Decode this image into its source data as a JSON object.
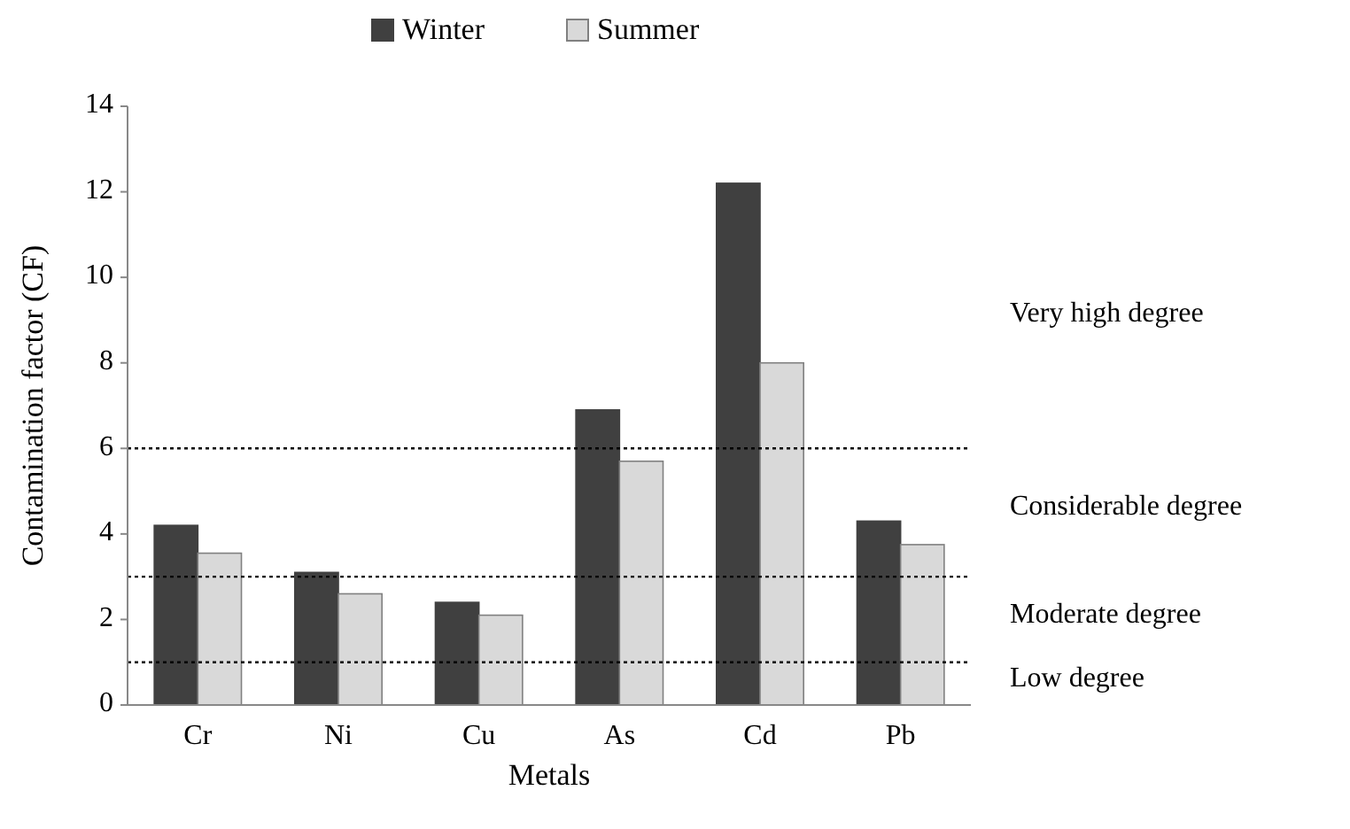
{
  "chart_data": {
    "type": "bar",
    "xlabel": "Metals",
    "ylabel": "Contamination factor (CF)",
    "categories": [
      "Cr",
      "Ni",
      "Cu",
      "As",
      "Cd",
      "Pb"
    ],
    "series": [
      {
        "name": "Winter",
        "color": "#404040",
        "values": [
          4.2,
          3.1,
          2.4,
          6.9,
          12.2,
          4.3
        ]
      },
      {
        "name": "Summer",
        "color": "#d9d9d9",
        "values": [
          3.55,
          2.6,
          2.1,
          5.7,
          8.0,
          3.75
        ]
      }
    ],
    "ylim": [
      0,
      14
    ],
    "yticks": [
      0,
      2,
      4,
      6,
      8,
      10,
      12,
      14
    ],
    "grid": false,
    "legend": "top",
    "ref_lines": [
      {
        "axis": "y",
        "value": 6,
        "line_style": "dotted"
      },
      {
        "axis": "y",
        "value": 3,
        "line_style": "dotted"
      },
      {
        "axis": "y",
        "value": 1,
        "line_style": "dotted"
      }
    ],
    "annotations": [
      "Very high degree",
      "Considerable degree",
      "Moderate degree",
      "Low degree"
    ]
  }
}
